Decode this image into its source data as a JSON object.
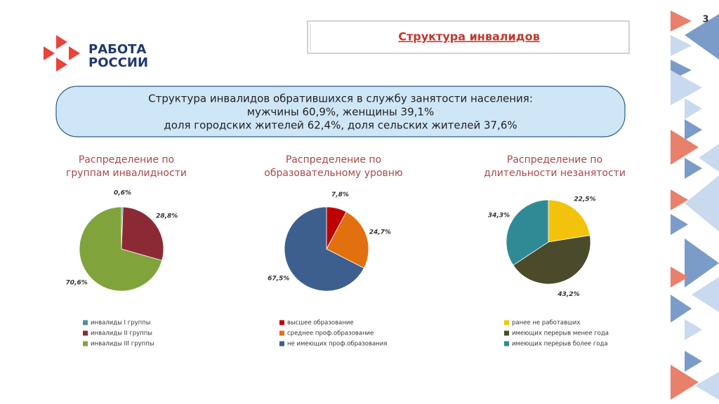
{
  "logo": [
    "РАБОТА",
    "РОССИИ"
  ],
  "page_number": "3",
  "title": "Структура инвалидов",
  "summary": [
    "Структура инвалидов обратившихся в службу занятости населения:",
    "мужчины 60,9%, женщины 39,1%",
    "доля городских жителей 62,4%, доля сельских жителей 37,6%"
  ],
  "chart_data": [
    {
      "type": "pie",
      "title": [
        "Распределение по",
        "группам инвалидности"
      ],
      "categories": [
        "инвалиды I группы",
        "инвалиды II группы",
        "инвалиды III группы"
      ],
      "values": [
        0.6,
        28.8,
        70.6
      ],
      "value_labels": [
        "0,6%",
        "28,8%",
        "70,6%"
      ],
      "colors": [
        "#4a8fa0",
        "#8b2a35",
        "#80a33c"
      ]
    },
    {
      "type": "pie",
      "title": [
        "Распределение по",
        "образовательному уровню"
      ],
      "categories": [
        "высшее образование",
        "среднее проф.образование",
        "не имеющих проф.образования"
      ],
      "values": [
        7.8,
        24.7,
        67.5
      ],
      "value_labels": [
        "7,8%",
        "24,7%",
        "67,5%"
      ],
      "colors": [
        "#c00000",
        "#e2700f",
        "#3c5f8e"
      ]
    },
    {
      "type": "pie",
      "title": [
        "Распределение по",
        "длительности незанятости"
      ],
      "categories": [
        "ранее не работавших",
        "имеющих перерыв менее года",
        "имеющих перерыв более года"
      ],
      "values": [
        22.5,
        43.2,
        34.3
      ],
      "value_labels": [
        "22,5%",
        "43,2%",
        "34,3%"
      ],
      "colors": [
        "#f3c30c",
        "#4b4a2b",
        "#2f8a96"
      ]
    }
  ]
}
